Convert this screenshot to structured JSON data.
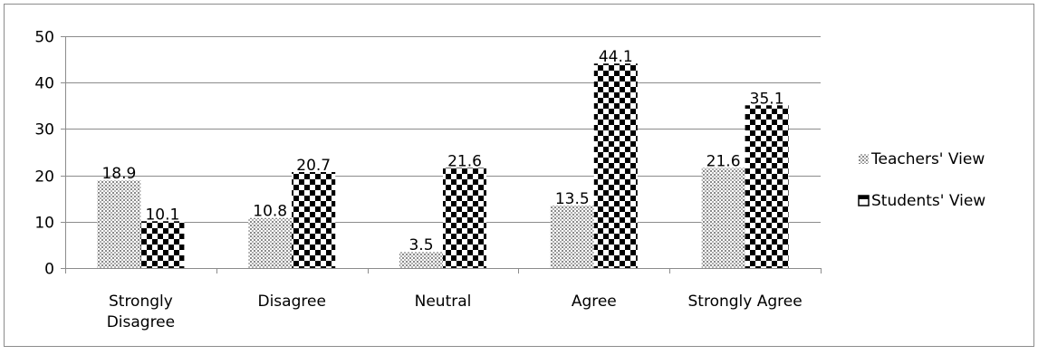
{
  "chart_data": {
    "type": "bar",
    "title": "",
    "xlabel": "",
    "ylabel": "",
    "categories": [
      [
        "Strongly",
        "Disagree"
      ],
      [
        "Disagree"
      ],
      [
        "Neutral"
      ],
      [
        "Agree"
      ],
      [
        "Strongly Agree"
      ]
    ],
    "category_names": [
      "Strongly Disagree",
      "Disagree",
      "Neutral",
      "Agree",
      "Strongly Agree"
    ],
    "series": [
      {
        "name": "Teachers' View",
        "values": [
          18.9,
          10.8,
          3.5,
          13.5,
          21.6
        ],
        "pattern": "dots"
      },
      {
        "name": "Students' View",
        "values": [
          10.1,
          20.7,
          21.6,
          44.1,
          35.1
        ],
        "pattern": "checker"
      }
    ],
    "value_labels": [
      [
        "18.9",
        "10.8",
        "3.5",
        "13.5",
        "21.6"
      ],
      [
        "10.1",
        "20.7",
        "21.6",
        "44.1",
        "35.1"
      ]
    ],
    "ylim": [
      0,
      50
    ],
    "yticks": [
      0,
      10,
      20,
      30,
      40,
      50
    ],
    "grid": true,
    "legend_position": "right"
  }
}
